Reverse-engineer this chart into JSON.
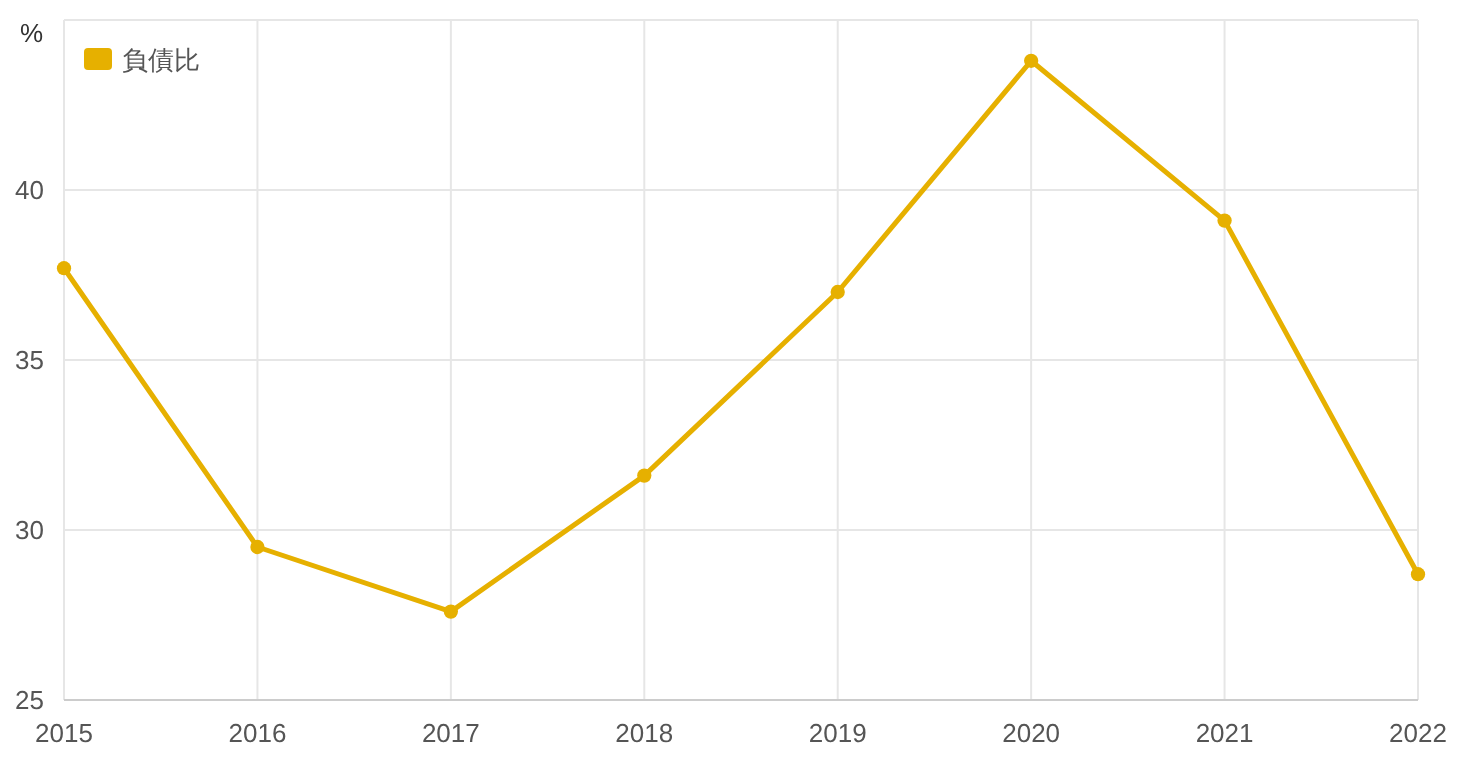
{
  "chart_data": {
    "type": "line",
    "ylabel": "%",
    "categories": [
      "2015",
      "2016",
      "2017",
      "2018",
      "2019",
      "2020",
      "2021",
      "2022"
    ],
    "series": [
      {
        "name": "負債比",
        "color": "#e6b000",
        "values": [
          37.7,
          29.5,
          27.6,
          31.6,
          37.0,
          43.8,
          39.1,
          28.7
        ]
      }
    ],
    "ylim": [
      25,
      45
    ],
    "yticks": [
      25,
      30,
      35,
      40,
      {
        "value": 45,
        "label": null
      }
    ],
    "grid": true,
    "legend": "top left",
    "marker": "circle",
    "line_style": "solid"
  }
}
